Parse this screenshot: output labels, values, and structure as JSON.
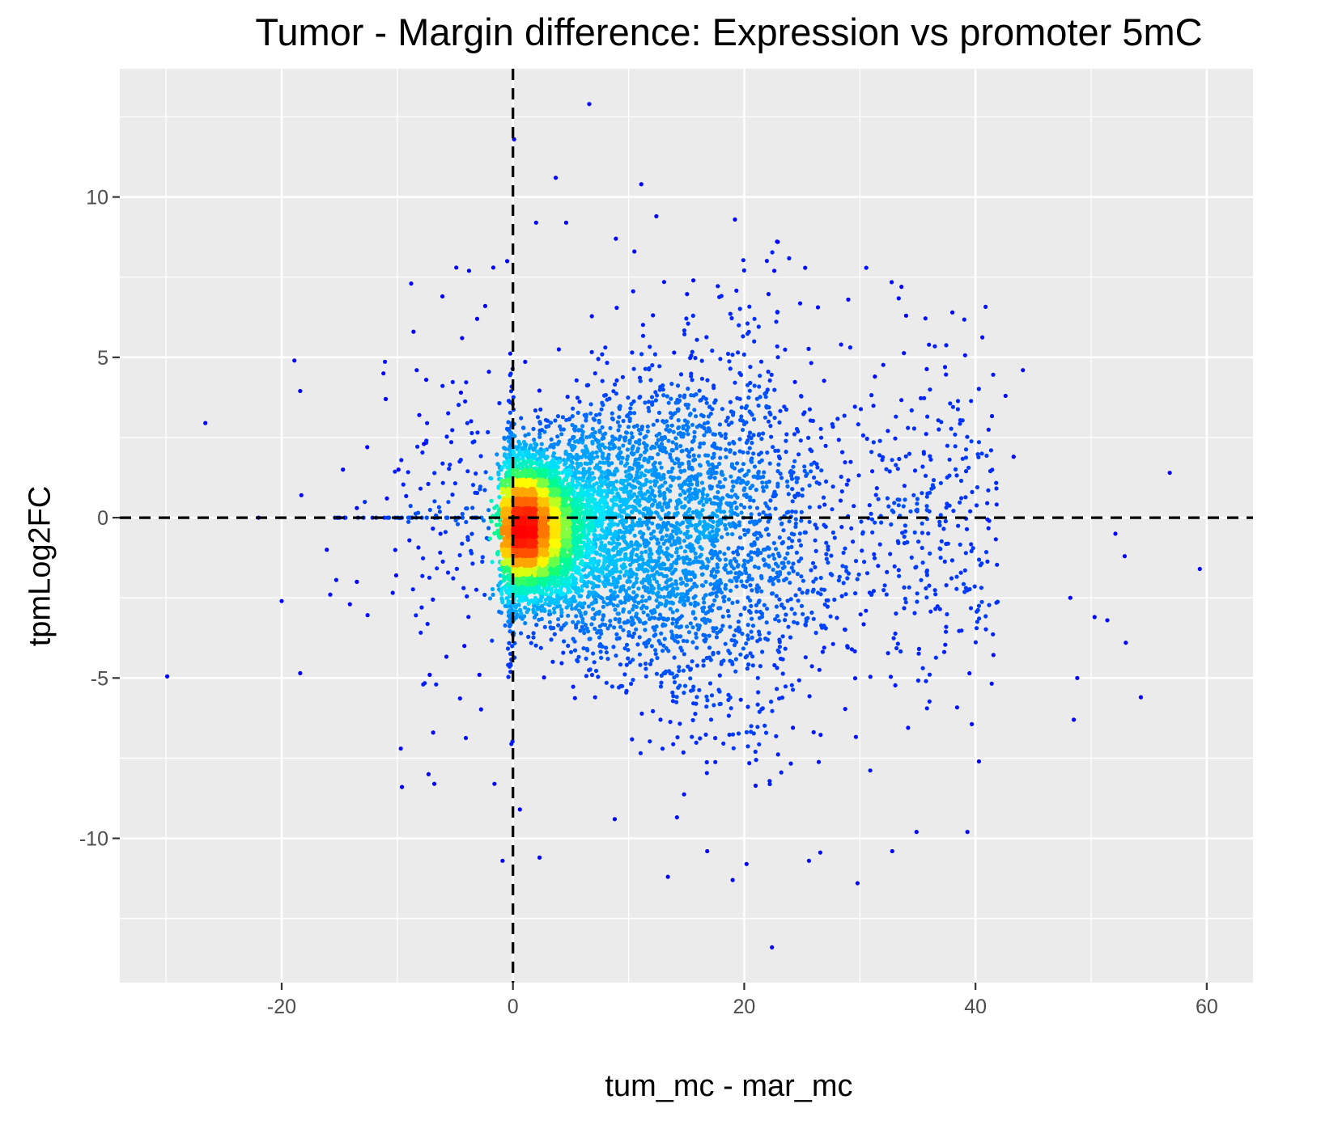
{
  "chart_data": {
    "type": "scatter",
    "title": "Tumor - Margin difference: Expression vs promoter 5mC",
    "xlabel": "tum_mc - mar_mc",
    "ylabel": "tpmLog2FC",
    "xlim": [
      -34,
      64
    ],
    "ylim": [
      -14.5,
      14
    ],
    "x_ticks": [
      -20,
      0,
      20,
      40,
      60
    ],
    "x_tick_labels": [
      "-20",
      "0",
      "20",
      "40",
      "60"
    ],
    "y_ticks": [
      -10,
      -5,
      0,
      5,
      10
    ],
    "y_tick_labels": [
      "-10",
      "-5",
      "0",
      "5",
      "10"
    ],
    "reference_lines": {
      "x": 0,
      "y": 0,
      "style": "dashed",
      "color": "#000000"
    },
    "grid": true,
    "panel_background": "#ebebeb",
    "color_scale": [
      "#0000ff",
      "#0080ff",
      "#00e5ff",
      "#00ff80",
      "#ffff00",
      "#ff8000",
      "#ff0000"
    ],
    "color_scale_meaning": "point density (low to high)",
    "outlier_points": [
      [
        -29.9,
        -4.95
      ],
      [
        -26.6,
        2.95
      ],
      [
        -22.0,
        0.0
      ],
      [
        -20.0,
        -2.6
      ],
      [
        -18.9,
        4.9
      ],
      [
        -18.4,
        3.95
      ],
      [
        -18.3,
        0.7
      ],
      [
        -18.4,
        -4.85
      ],
      [
        -16.1,
        -1.0
      ],
      [
        -15.8,
        -2.4
      ],
      [
        -14.7,
        1.5
      ],
      [
        -14.1,
        -2.7
      ],
      [
        -13.5,
        0.3
      ],
      [
        -13.5,
        -2.0
      ],
      [
        -12.6,
        2.2
      ],
      [
        -11.2,
        4.5
      ],
      [
        -11.0,
        3.7
      ],
      [
        -10.9,
        0.6
      ],
      [
        -10.1,
        -1.8
      ],
      [
        -9.9,
        1.5
      ],
      [
        -9.7,
        -7.2
      ],
      [
        -9.6,
        -8.4
      ],
      [
        -8.8,
        7.3
      ],
      [
        -8.6,
        5.8
      ],
      [
        -8.1,
        3.2
      ],
      [
        -7.7,
        2.3
      ],
      [
        -7.5,
        4.3
      ],
      [
        -7.3,
        -8.0
      ],
      [
        -7.2,
        -4.9
      ],
      [
        -6.9,
        -6.7
      ],
      [
        -6.8,
        -8.3
      ],
      [
        -6.1,
        6.9
      ],
      [
        -4.9,
        7.8
      ],
      [
        -4.4,
        5.6
      ],
      [
        -4.5,
        3.9
      ],
      [
        -4.2,
        -4.0
      ],
      [
        -3.8,
        7.7
      ],
      [
        -3.1,
        6.2
      ],
      [
        -2.4,
        6.6
      ],
      [
        -1.7,
        7.8
      ],
      [
        -2.9,
        -4.9
      ],
      [
        -1.6,
        -8.3
      ],
      [
        -0.9,
        -10.7
      ],
      [
        -0.5,
        8.0
      ],
      [
        0.1,
        11.8
      ],
      [
        6.6,
        12.9
      ],
      [
        3.7,
        10.6
      ],
      [
        11.1,
        10.4
      ],
      [
        12.4,
        9.4
      ],
      [
        4.6,
        9.2
      ],
      [
        2.0,
        9.2
      ],
      [
        19.2,
        9.3
      ],
      [
        22.9,
        8.6
      ],
      [
        10.5,
        8.3
      ],
      [
        8.9,
        8.7
      ],
      [
        22.6,
        7.7
      ],
      [
        15.6,
        7.4
      ],
      [
        33.6,
        7.2
      ],
      [
        29.0,
        6.8
      ],
      [
        38.0,
        6.4
      ],
      [
        34.0,
        6.3
      ],
      [
        44.1,
        4.6
      ],
      [
        42.6,
        3.8
      ],
      [
        56.8,
        1.4
      ],
      [
        59.4,
        -1.6
      ],
      [
        52.9,
        -1.2
      ],
      [
        52.1,
        -0.5
      ],
      [
        48.2,
        -2.5
      ],
      [
        50.3,
        -3.1
      ],
      [
        51.4,
        -3.2
      ],
      [
        53.0,
        -3.9
      ],
      [
        48.8,
        -5.0
      ],
      [
        54.3,
        -5.6
      ],
      [
        48.5,
        -6.3
      ],
      [
        40.3,
        -7.6
      ],
      [
        39.3,
        -9.8
      ],
      [
        34.9,
        -9.8
      ],
      [
        32.8,
        -10.4
      ],
      [
        29.8,
        -11.4
      ],
      [
        25.6,
        -10.7
      ],
      [
        22.4,
        -13.4
      ],
      [
        20.2,
        -10.8
      ],
      [
        19.0,
        -11.3
      ],
      [
        16.8,
        -10.4
      ],
      [
        13.4,
        -11.2
      ],
      [
        8.8,
        -9.4
      ],
      [
        2.3,
        -10.6
      ],
      [
        0.6,
        -9.1
      ],
      [
        31.3,
        4.4
      ],
      [
        43.3,
        1.9
      ]
    ]
  }
}
